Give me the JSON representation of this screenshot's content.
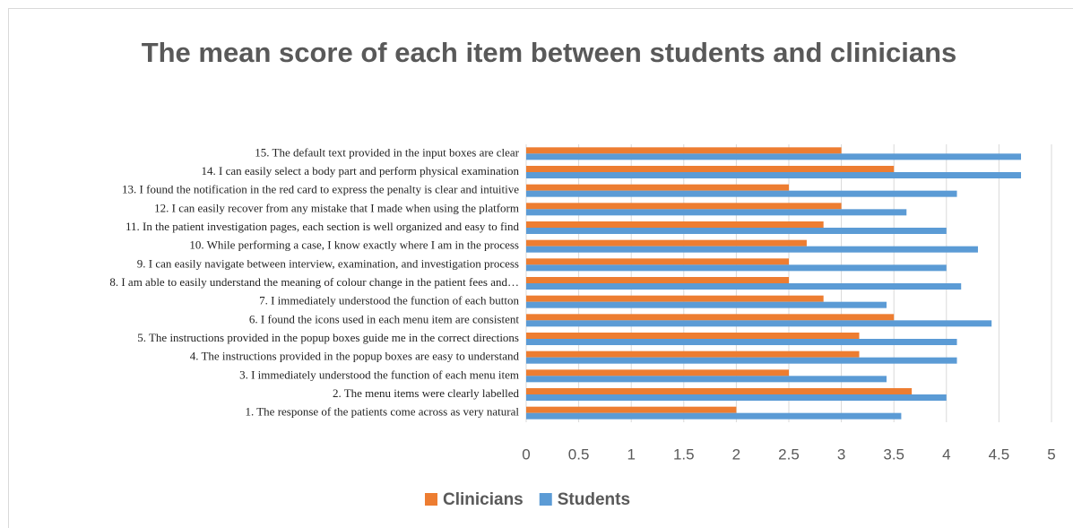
{
  "chart_data": {
    "type": "hbar",
    "title": "The mean score of each item between students and clinicians",
    "categories": [
      "1. The response of the patients come across as very natural",
      "2. The menu items were clearly labelled",
      "3. I immediately understood the function of each menu item",
      "4. The instructions provided in the popup boxes are easy to understand",
      "5. The instructions provided in the popup boxes guide me in the correct directions",
      "6. I found the icons used in each menu item are consistent",
      "7. I immediately understood the function of each button",
      "8. I am able to easily understand the meaning of colour change in the patient fees and…",
      "9. I can easily navigate between interview, examination, and investigation process",
      "10. While performing a case, I know exactly where I am in the process",
      "11. In the patient investigation pages, each section is well organized and easy to find",
      "12. I can easily recover from any mistake that I made when using the platform",
      "13. I found the notification in the red card to express the penalty is clear and intuitive",
      "14. I can easily select a body part and perform physical examination",
      "15. The default text provided in the input boxes are clear"
    ],
    "series": [
      {
        "name": "Clinicians",
        "color": "#ed7d31",
        "values": [
          2.0,
          3.67,
          2.5,
          3.17,
          3.17,
          3.5,
          2.83,
          2.5,
          2.5,
          2.67,
          2.83,
          3.0,
          2.5,
          3.5,
          3.0
        ]
      },
      {
        "name": "Students",
        "color": "#5b9bd5",
        "values": [
          3.57,
          4.0,
          3.43,
          4.1,
          4.1,
          4.43,
          3.43,
          4.14,
          4.0,
          4.3,
          4.0,
          3.62,
          4.1,
          4.71,
          4.71
        ]
      }
    ],
    "xlim": [
      0,
      5
    ],
    "xticks": [
      0,
      0.5,
      1,
      1.5,
      2,
      2.5,
      3,
      3.5,
      4,
      4.5,
      5
    ],
    "grid": true,
    "legend": "bottom"
  }
}
